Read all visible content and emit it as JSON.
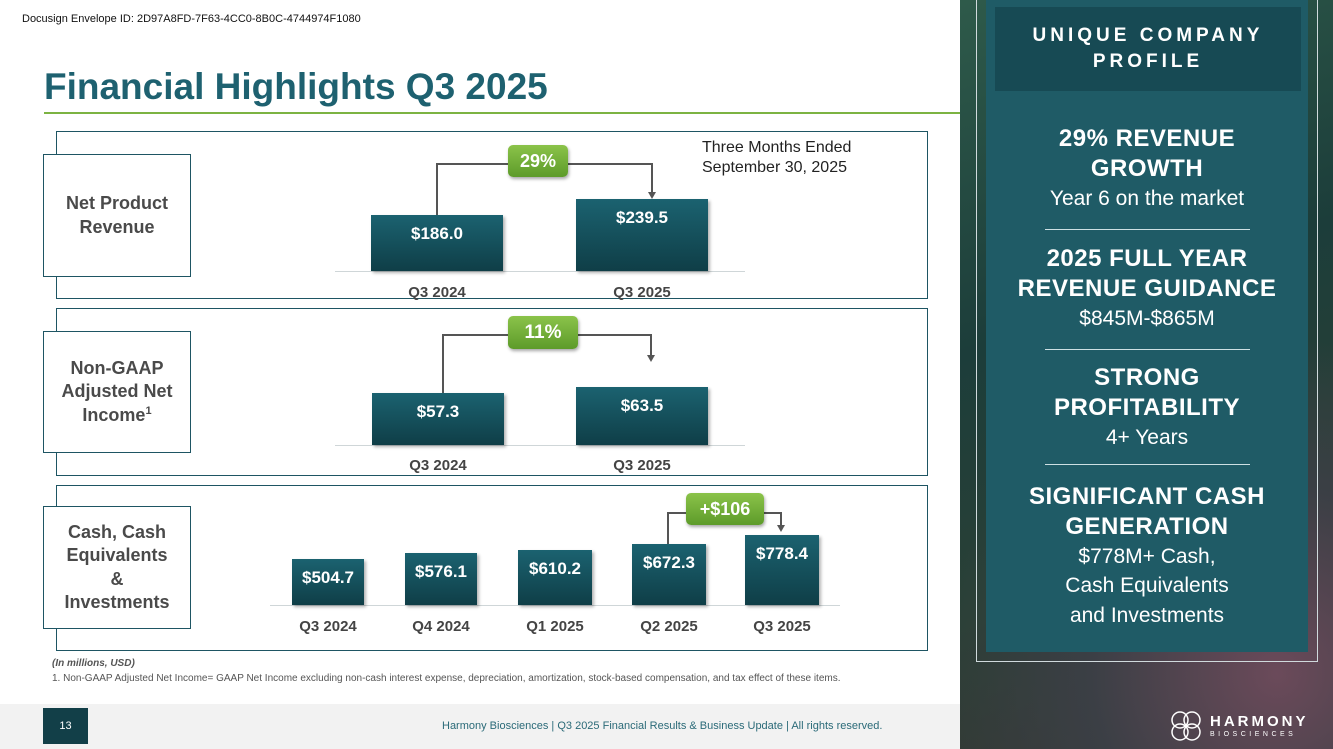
{
  "envelope_id": "Docusign Envelope ID: 2D97A8FD-7F63-4CC0-8B0C-4744974F1080",
  "page_title": "Financial Highlights Q3 2025",
  "period_label_line1": "Three Months Ended",
  "period_label_line2": "September 30, 2025",
  "sections": {
    "revenue": {
      "label_line1": "Net Product",
      "label_line2": "Revenue",
      "bars": [
        {
          "category": "Q3 2024",
          "value_label": "$186.0"
        },
        {
          "category": "Q3 2025",
          "value_label": "$239.5"
        }
      ],
      "growth": "29%"
    },
    "net_income": {
      "label_line1": "Non-GAAP",
      "label_line2": "Adjusted Net",
      "label_line3": "Income",
      "label_sup": "1",
      "bars": [
        {
          "category": "Q3 2024",
          "value_label": "$57.3"
        },
        {
          "category": "Q3 2025",
          "value_label": "$63.5"
        }
      ],
      "growth": "11%"
    },
    "cash": {
      "label_line1": "Cash, Cash",
      "label_line2": "Equivalents",
      "label_line3": "&",
      "label_line4": "Investments",
      "bars": [
        {
          "category": "Q3 2024",
          "value_label": "$504.7"
        },
        {
          "category": "Q4 2024",
          "value_label": "$576.1"
        },
        {
          "category": "Q1 2025",
          "value_label": "$610.2"
        },
        {
          "category": "Q2 2025",
          "value_label": "$672.3"
        },
        {
          "category": "Q3 2025",
          "value_label": "$778.4"
        }
      ],
      "growth": "+$106"
    }
  },
  "footnote_units": "(In millions, USD)",
  "footnote_1": "1. Non-GAAP Adjusted Net Income= GAAP Net Income excluding non-cash interest expense, depreciation, amortization, stock-based compensation, and tax effect of these items.",
  "page_number": "13",
  "footer_text": "Harmony Biosciences | Q3 2025 Financial Results & Business Update | All rights reserved.",
  "profile": {
    "heading_line1": "UNIQUE COMPANY",
    "heading_line2": "PROFILE",
    "stats": [
      {
        "title_line1": "29% REVENUE",
        "title_line2": "GROWTH",
        "sub_line1": "Year 6 on the market"
      },
      {
        "title_line1": "2025 FULL YEAR",
        "title_line2": "REVENUE GUIDANCE",
        "sub_line1": "$845M-$865M"
      },
      {
        "title_line1": "STRONG",
        "title_line2": "PROFITABILITY",
        "sub_line1": "4+ Years"
      },
      {
        "title_line1": "SIGNIFICANT CASH",
        "title_line2": "GENERATION",
        "sub_line1": "$778M+ Cash,",
        "sub_line2": "Cash Equivalents",
        "sub_line3": "and Investments"
      }
    ]
  },
  "logo": {
    "name": "HARMONY",
    "sub": "BIOSCIENCES"
  },
  "colors": {
    "brand_teal": "#1f5b66",
    "accent_green": "#7cb342"
  }
}
